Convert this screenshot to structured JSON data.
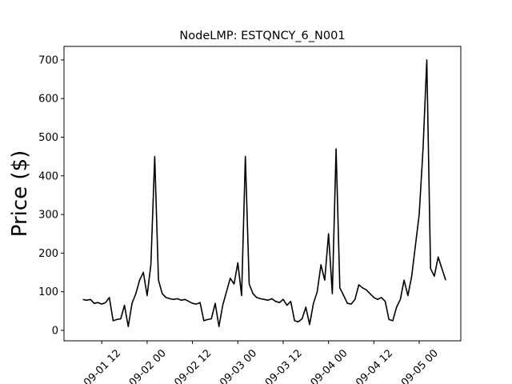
{
  "chart_data": {
    "type": "line",
    "title": "NodeLMP: ESTQNCY_6_N001",
    "ylabel": "Price ($)",
    "color": "#000000",
    "x": [
      "09-01 07",
      "09-01 08",
      "09-01 09",
      "09-01 10",
      "09-01 11",
      "09-01 12",
      "09-01 13",
      "09-01 14",
      "09-01 15",
      "09-01 16",
      "09-01 17",
      "09-01 18",
      "09-01 19",
      "09-01 20",
      "09-01 21",
      "09-01 22",
      "09-01 23",
      "09-02 00",
      "09-02 01",
      "09-02 02",
      "09-02 03",
      "09-02 04",
      "09-02 05",
      "09-02 06",
      "09-02 07",
      "09-02 08",
      "09-02 09",
      "09-02 10",
      "09-02 11",
      "09-02 12",
      "09-02 13",
      "09-02 14",
      "09-02 15",
      "09-02 16",
      "09-02 17",
      "09-02 18",
      "09-02 19",
      "09-02 20",
      "09-02 21",
      "09-02 22",
      "09-02 23",
      "09-03 00",
      "09-03 01",
      "09-03 02",
      "09-03 03",
      "09-03 04",
      "09-03 05",
      "09-03 06",
      "09-03 07",
      "09-03 08",
      "09-03 09",
      "09-03 10",
      "09-03 11",
      "09-03 12",
      "09-03 13",
      "09-03 14",
      "09-03 15",
      "09-03 16",
      "09-03 17",
      "09-03 18",
      "09-03 19",
      "09-03 20",
      "09-03 21",
      "09-03 22",
      "09-03 23",
      "09-04 00",
      "09-04 01",
      "09-04 02",
      "09-04 03",
      "09-04 04",
      "09-04 05",
      "09-04 06",
      "09-04 07",
      "09-04 08",
      "09-04 09",
      "09-04 10",
      "09-04 11",
      "09-04 12",
      "09-04 13",
      "09-04 14",
      "09-04 15",
      "09-04 16",
      "09-04 17",
      "09-04 18",
      "09-04 19",
      "09-04 20",
      "09-04 21",
      "09-04 22",
      "09-04 23",
      "09-05 00",
      "09-05 01",
      "09-05 02",
      "09-05 03",
      "09-05 04",
      "09-05 05",
      "09-05 06",
      "09-05 07"
    ],
    "values": [
      80,
      78,
      80,
      70,
      72,
      68,
      72,
      85,
      25,
      28,
      30,
      65,
      10,
      70,
      95,
      130,
      150,
      90,
      170,
      450,
      130,
      95,
      85,
      82,
      80,
      82,
      78,
      80,
      75,
      70,
      68,
      72,
      25,
      28,
      30,
      70,
      10,
      65,
      100,
      135,
      120,
      175,
      90,
      450,
      120,
      95,
      85,
      82,
      80,
      78,
      82,
      75,
      72,
      80,
      65,
      75,
      25,
      22,
      30,
      60,
      15,
      70,
      100,
      170,
      130,
      250,
      95,
      470,
      110,
      90,
      70,
      68,
      80,
      118,
      110,
      105,
      95,
      85,
      80,
      85,
      75,
      28,
      25,
      60,
      80,
      130,
      90,
      140,
      220,
      300,
      470,
      700,
      160,
      140,
      190,
      160,
      130
    ],
    "xlim": [
      "09-01 02",
      "09-05 11"
    ],
    "xticks": [
      "09-01 12",
      "09-02 00",
      "09-02 12",
      "09-03 00",
      "09-03 12",
      "09-04 00",
      "09-04 12",
      "09-05 00"
    ],
    "ylim": [
      -27,
      735
    ],
    "yticks": [
      0,
      100,
      200,
      300,
      400,
      500,
      600,
      700
    ]
  }
}
